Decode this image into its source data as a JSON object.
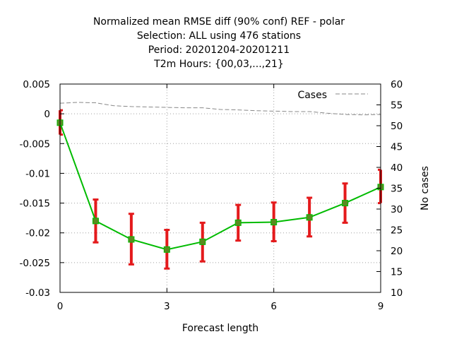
{
  "chart_data": {
    "type": "line",
    "title_lines": [
      "Normalized mean RMSE diff (90% conf) REF - polar",
      "Selection: ALL using   476 stations",
      "Period: 20201204-20201211",
      "T2m   Hours: {00,03,...,21}"
    ],
    "xlabel": "Forecast length",
    "ylabel": "",
    "y2label": "No cases",
    "xlim": [
      0,
      9
    ],
    "ylim": [
      -0.03,
      0.005
    ],
    "y2lim": [
      10,
      60
    ],
    "x_ticks": [
      "0",
      "3",
      "6",
      "9"
    ],
    "x_tick_values": [
      0,
      3,
      6,
      9
    ],
    "y_ticks": [
      "0.005",
      "0",
      "-0.005",
      "-0.01",
      "-0.015",
      "-0.02",
      "-0.025",
      "-0.03"
    ],
    "y_tick_values": [
      0.005,
      0,
      -0.005,
      -0.01,
      -0.015,
      -0.02,
      -0.025,
      -0.03
    ],
    "y2_ticks": [
      "60",
      "55",
      "50",
      "45",
      "40",
      "35",
      "30",
      "25",
      "20",
      "15",
      "10"
    ],
    "y2_tick_values": [
      60,
      55,
      50,
      45,
      40,
      35,
      30,
      25,
      20,
      15,
      10
    ],
    "grid": true,
    "series": [
      {
        "name": "",
        "color": "#00bb00",
        "marker_color": "#5a8a20",
        "errorbar_color": "#e41a1c",
        "x": [
          0,
          1,
          2,
          3,
          4,
          5,
          6,
          7,
          8,
          9
        ],
        "y": [
          -0.0015,
          -0.018,
          -0.0211,
          -0.0228,
          -0.0215,
          -0.0183,
          -0.0182,
          -0.0174,
          -0.015,
          -0.0123
        ],
        "err_low": [
          -0.0035,
          -0.0216,
          -0.0253,
          -0.026,
          -0.0248,
          -0.0213,
          -0.0214,
          -0.0206,
          -0.0183,
          -0.015
        ],
        "err_high": [
          0.0006,
          -0.0144,
          -0.0168,
          -0.0195,
          -0.0183,
          -0.0153,
          -0.0149,
          -0.0141,
          -0.0117,
          -0.0094
        ]
      }
    ],
    "cases_series": {
      "name": "Cases",
      "color": "#888888",
      "x": [
        0,
        0.5,
        1,
        1.5,
        2,
        2.5,
        3,
        3.5,
        4,
        4.5,
        5,
        5.5,
        6,
        6.5,
        7,
        7.5,
        8,
        8.5,
        9
      ],
      "y": [
        55.4,
        55.6,
        55.5,
        54.8,
        54.6,
        54.5,
        54.4,
        54.3,
        54.3,
        53.9,
        53.8,
        53.6,
        53.5,
        53.4,
        53.4,
        53.0,
        52.7,
        52.6,
        52.7
      ]
    },
    "legend_position": "top-right"
  }
}
